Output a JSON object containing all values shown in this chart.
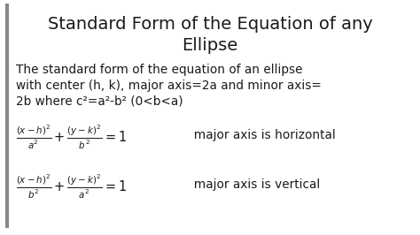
{
  "title_line1": "Standard Form of the Equation of any",
  "title_line2": "Ellipse",
  "body_line1": "The standard form of the equation of an ellipse",
  "body_line2": "with center (h, k), major axis=2a and minor axis=",
  "body_line3": "2b where c²=a²-b² (0<b<a)",
  "eq1_right": "  major axis is horizontal",
  "eq2_right": "  major axis is vertical",
  "bg_color": "#ffffff",
  "text_color": "#1a1a1a",
  "border_color": "#888888",
  "title_fontsize": 14,
  "body_fontsize": 9.8,
  "eq_fontsize": 10.5,
  "eq_note_fontsize": 9.8
}
